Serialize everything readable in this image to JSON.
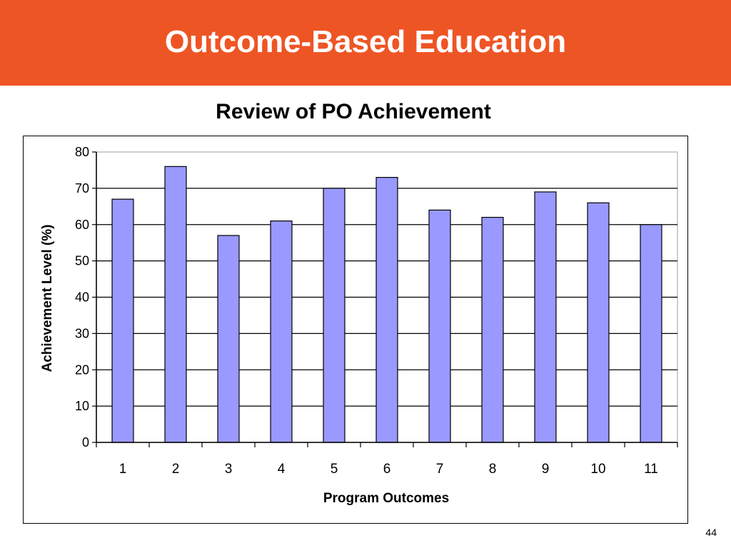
{
  "header": {
    "title": "Outcome-Based Education",
    "color": "#ee5525"
  },
  "page_number": "44",
  "chart_data": {
    "type": "bar",
    "title": "Review of PO Achievement",
    "xlabel": "Program Outcomes",
    "ylabel": "Achievement Level (%)",
    "categories": [
      "1",
      "2",
      "3",
      "4",
      "5",
      "6",
      "7",
      "8",
      "9",
      "10",
      "11"
    ],
    "values": [
      67,
      76,
      57,
      61,
      70,
      73,
      64,
      62,
      69,
      66,
      60
    ],
    "ylim": [
      0,
      80
    ],
    "yticks": [
      0,
      10,
      20,
      30,
      40,
      50,
      60,
      70,
      80
    ],
    "grid": true,
    "legend": "none",
    "bar_color": "#9999ff",
    "bar_edge_color": "#000000"
  }
}
